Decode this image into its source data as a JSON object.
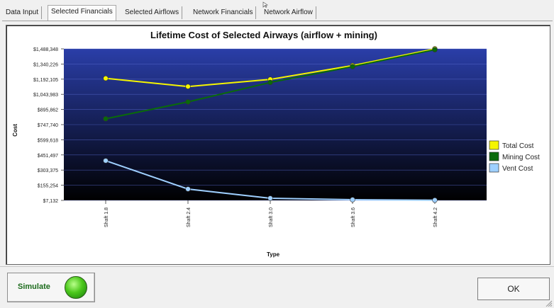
{
  "tabs": [
    {
      "label": "Data Input",
      "active": false
    },
    {
      "label": "Selected Financials",
      "active": true
    },
    {
      "label": "Selected Airflows",
      "active": false
    },
    {
      "label": "Network Financials",
      "active": false
    },
    {
      "label": "Network Airflow",
      "active": false
    }
  ],
  "buttons": {
    "simulate_label": "Simulate",
    "ok_label": "OK"
  },
  "colors": {
    "plot_top": "#2a3ea8",
    "plot_bottom": "#000000",
    "total_cost": "#f5f500",
    "mining_cost": "#0a6a0a",
    "vent_cost": "#9fd0ff",
    "status_led": "#4cc81c"
  },
  "chart_data": {
    "type": "line",
    "title": "Lifetime Cost of Selected Airways (airflow + mining)",
    "xlabel": "Type",
    "ylabel": "Cost",
    "categories": [
      "Shaft 1.8",
      "Shaft 2.4",
      "Shaft 3.0",
      "Shaft 3.6",
      "Shaft 4.2"
    ],
    "y_ticks": [
      "$7,132",
      "$155,254",
      "$303,375",
      "$451,497",
      "$599,618",
      "$747,740",
      "$895,862",
      "$1,043,983",
      "$1,192,105",
      "$1,340,226",
      "$1,488,348"
    ],
    "ylim": [
      7132,
      1488348
    ],
    "grid": true,
    "legend_position": "right",
    "series": [
      {
        "name": "Total Cost",
        "color": "#f5f500",
        "values": [
          1200000,
          1120000,
          1190000,
          1325000,
          1488348
        ]
      },
      {
        "name": "Mining Cost",
        "color": "#0a6a0a",
        "values": [
          805000,
          970000,
          1160000,
          1315000,
          1480000
        ]
      },
      {
        "name": "Vent Cost",
        "color": "#9fd0ff",
        "values": [
          395000,
          118000,
          28000,
          14000,
          9000
        ]
      }
    ]
  }
}
